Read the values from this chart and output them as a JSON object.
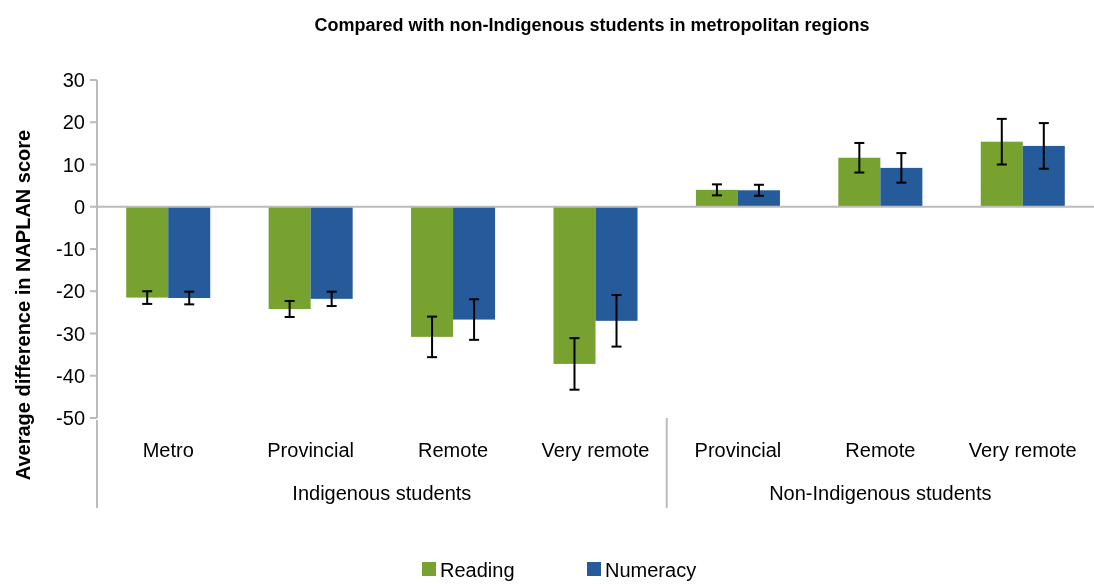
{
  "chart_data": {
    "type": "bar",
    "title": "Compared with non-Indigenous students in metropolitan regions",
    "ylabel": "Average difference in NAPLAN score",
    "categories": [
      "Metro",
      "Provincial",
      "Remote",
      "Very remote",
      "Provincial",
      "Remote",
      "Very remote"
    ],
    "series": [
      {
        "name": "Reading",
        "color": "#78a22f",
        "values": [
          -21.5,
          -24.2,
          -30.8,
          -37.2,
          4.0,
          11.6,
          15.4
        ],
        "errors": [
          1.5,
          1.9,
          4.8,
          6.1,
          1.3,
          3.5,
          5.4
        ]
      },
      {
        "name": "Numeracy",
        "color": "#265b9b",
        "values": [
          -21.6,
          -21.8,
          -26.7,
          -27.0,
          3.9,
          9.2,
          14.4
        ],
        "errors": [
          1.5,
          1.7,
          4.8,
          6.1,
          1.3,
          3.5,
          5.4
        ]
      }
    ],
    "annotations": [
      "Indigenous students",
      "Non-Indigenous students"
    ],
    "ylim": [
      -50,
      30
    ],
    "yticks": [
      -50,
      -40,
      -30,
      -20,
      -10,
      0,
      10,
      20,
      30
    ],
    "legend": "bottom"
  }
}
